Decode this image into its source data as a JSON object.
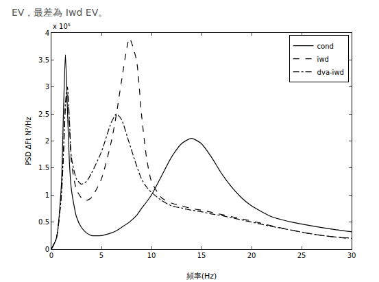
{
  "chart_data": {
    "type": "line",
    "x_label": "頻率(Hz)",
    "y_label": "PSD ΔFt N²/Hz",
    "annotations": [
      {
        "text": "EV，最差為 Iwd EV。"
      },
      {
        "text": "x 10⁵"
      }
    ],
    "x": [
      0,
      0.5,
      1,
      1.2,
      1.4,
      1.6,
      1.8,
      2,
      2.5,
      3,
      3.5,
      4,
      5,
      6,
      6.5,
      7,
      7.8,
      8.5,
      9,
      9.5,
      10,
      11,
      12,
      13,
      14,
      15,
      16,
      17,
      18,
      19,
      20,
      22,
      24,
      26,
      28,
      30
    ],
    "series": [
      {
        "name": "cond",
        "color": "#000000",
        "line_style": "solid",
        "values": [
          0,
          0.2,
          1.2,
          2.5,
          3.6,
          2.6,
          1.6,
          1.1,
          0.6,
          0.4,
          0.3,
          0.25,
          0.25,
          0.3,
          0.34,
          0.4,
          0.5,
          0.62,
          0.75,
          0.87,
          1.0,
          1.35,
          1.7,
          1.95,
          2.05,
          1.95,
          1.7,
          1.4,
          1.15,
          0.95,
          0.8,
          0.6,
          0.5,
          0.43,
          0.37,
          0.32
        ]
      },
      {
        "name": "iwd",
        "color": "#000000",
        "line_style": "dash",
        "values": [
          0,
          0.2,
          1.0,
          1.7,
          2.6,
          2.9,
          2.3,
          1.6,
          1.1,
          0.95,
          0.9,
          0.95,
          1.3,
          2.0,
          2.5,
          3.1,
          3.9,
          3.5,
          2.5,
          1.7,
          1.25,
          0.95,
          0.85,
          0.8,
          0.75,
          0.72,
          0.68,
          0.64,
          0.6,
          0.56,
          0.52,
          0.43,
          0.35,
          0.28,
          0.23,
          0.19
        ]
      },
      {
        "name": "dva-iwd",
        "color": "#000000",
        "line_style": "dashdot",
        "values": [
          0,
          0.2,
          1.0,
          1.8,
          2.7,
          3.0,
          2.4,
          1.7,
          1.3,
          1.2,
          1.25,
          1.4,
          1.8,
          2.35,
          2.5,
          2.4,
          1.95,
          1.55,
          1.3,
          1.15,
          1.05,
          0.9,
          0.8,
          0.76,
          0.72,
          0.69,
          0.65,
          0.62,
          0.58,
          0.54,
          0.5,
          0.42,
          0.35,
          0.28,
          0.23,
          0.2
        ]
      }
    ],
    "xlim": [
      0,
      30
    ],
    "xticks": [
      0,
      5,
      10,
      15,
      20,
      25,
      30
    ],
    "ylim": [
      0,
      4
    ],
    "yticks": [
      0,
      0.5,
      1,
      1.5,
      2,
      2.5,
      3,
      3.5,
      4
    ],
    "grid": false,
    "legend": "top-right"
  }
}
